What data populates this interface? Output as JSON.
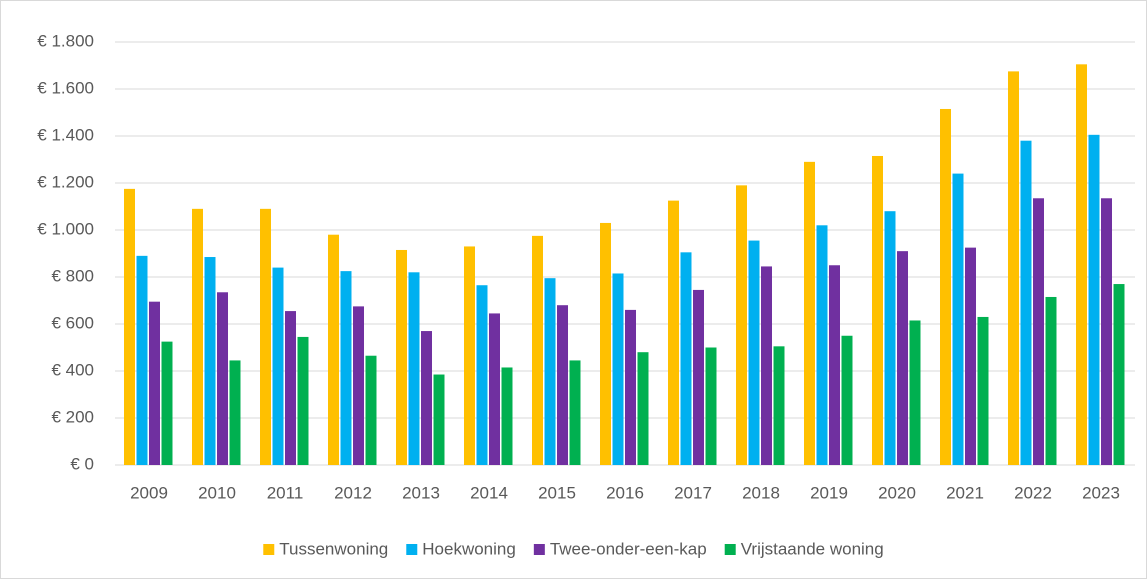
{
  "chart_data": {
    "type": "bar",
    "categories": [
      "2009",
      "2010",
      "2011",
      "2012",
      "2013",
      "2014",
      "2015",
      "2016",
      "2017",
      "2018",
      "2019",
      "2020",
      "2021",
      "2022",
      "2023"
    ],
    "series": [
      {
        "name": "Tussenwoning",
        "color": "#ffc000",
        "values": [
          1175,
          1090,
          1090,
          980,
          915,
          930,
          975,
          1030,
          1125,
          1190,
          1290,
          1315,
          1515,
          1675,
          1705
        ]
      },
      {
        "name": "Hoekwoning",
        "color": "#00b0f0",
        "values": [
          890,
          885,
          840,
          825,
          820,
          765,
          795,
          815,
          905,
          955,
          1020,
          1080,
          1240,
          1380,
          1405
        ]
      },
      {
        "name": "Twee-onder-een-kap",
        "color": "#7030a0",
        "values": [
          695,
          735,
          655,
          675,
          570,
          645,
          680,
          660,
          745,
          845,
          850,
          910,
          925,
          1135,
          1135
        ]
      },
      {
        "name": "Vrijstaande woning",
        "color": "#00b050",
        "values": [
          525,
          445,
          545,
          465,
          385,
          415,
          445,
          480,
          500,
          505,
          550,
          615,
          630,
          715,
          770
        ]
      }
    ],
    "ylim": [
      0,
      1800
    ],
    "yticks": [
      {
        "value": 0,
        "label": "€ 0"
      },
      {
        "value": 200,
        "label": "€ 200"
      },
      {
        "value": 400,
        "label": "€ 400"
      },
      {
        "value": 600,
        "label": "€ 600"
      },
      {
        "value": 800,
        "label": "€ 800"
      },
      {
        "value": 1000,
        "label": "€ 1.000"
      },
      {
        "value": 1200,
        "label": "€ 1.200"
      },
      {
        "value": 1400,
        "label": "€ 1.400"
      },
      {
        "value": 1600,
        "label": "€ 1.600"
      },
      {
        "value": 1800,
        "label": "€ 1.800"
      }
    ],
    "grid": true,
    "legend": "bottom"
  }
}
